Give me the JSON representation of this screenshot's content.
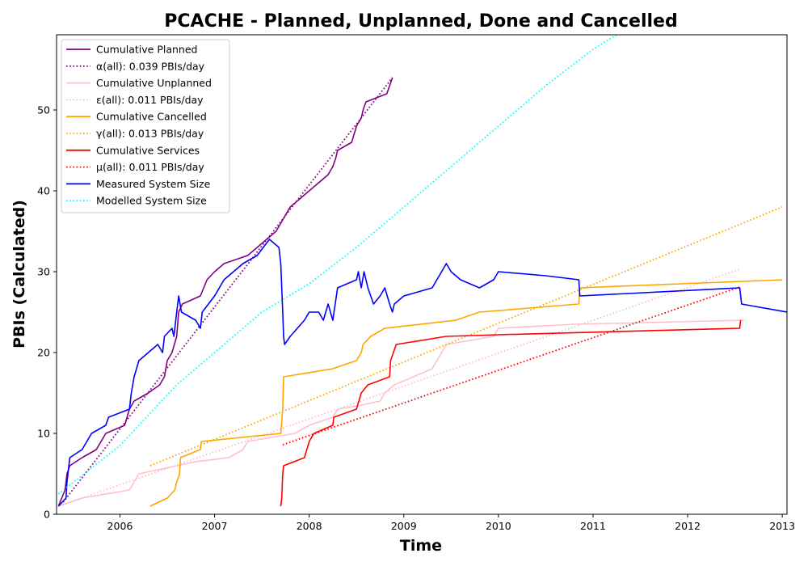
{
  "chart_data": {
    "type": "line",
    "title": "PCACHE - Planned, Unplanned, Done  and Cancelled",
    "xlabel": "Time",
    "ylabel": "PBIs (Calculated)",
    "xlim": [
      2005.33,
      2013.05
    ],
    "ylim": [
      0,
      59.3
    ],
    "x_ticks": [
      {
        "value": 2006,
        "label": "2006"
      },
      {
        "value": 2007,
        "label": "2007"
      },
      {
        "value": 2008,
        "label": "2008"
      },
      {
        "value": 2009,
        "label": "2009"
      },
      {
        "value": 2010,
        "label": "2010"
      },
      {
        "value": 2011,
        "label": "2011"
      },
      {
        "value": 2012,
        "label": "2012"
      },
      {
        "value": 2013,
        "label": "2013"
      }
    ],
    "y_ticks": [
      {
        "value": 0,
        "label": "0"
      },
      {
        "value": 10,
        "label": "10"
      },
      {
        "value": 20,
        "label": "20"
      },
      {
        "value": 30,
        "label": "30"
      },
      {
        "value": 40,
        "label": "40"
      },
      {
        "value": 50,
        "label": "50"
      }
    ],
    "grid": false,
    "legend_position": "top-left",
    "series": [
      {
        "name": "Cumulative Planned",
        "color": "#800080",
        "style": "solid",
        "points": [
          [
            2005.35,
            1
          ],
          [
            2005.42,
            3
          ],
          [
            2005.44,
            5
          ],
          [
            2005.47,
            6
          ],
          [
            2005.6,
            7
          ],
          [
            2005.75,
            8
          ],
          [
            2005.85,
            10
          ],
          [
            2006.05,
            11
          ],
          [
            2006.1,
            13
          ],
          [
            2006.15,
            14
          ],
          [
            2006.3,
            15
          ],
          [
            2006.42,
            16
          ],
          [
            2006.47,
            17
          ],
          [
            2006.5,
            19
          ],
          [
            2006.55,
            20
          ],
          [
            2006.6,
            22
          ],
          [
            2006.62,
            25
          ],
          [
            2006.66,
            26
          ],
          [
            2006.85,
            27
          ],
          [
            2006.92,
            29
          ],
          [
            2007.0,
            30
          ],
          [
            2007.1,
            31
          ],
          [
            2007.35,
            32
          ],
          [
            2007.55,
            34
          ],
          [
            2007.65,
            35
          ],
          [
            2007.7,
            36
          ],
          [
            2007.8,
            38
          ],
          [
            2007.9,
            39
          ],
          [
            2008.0,
            40
          ],
          [
            2008.1,
            41
          ],
          [
            2008.2,
            42
          ],
          [
            2008.25,
            43
          ],
          [
            2008.28,
            44
          ],
          [
            2008.3,
            45
          ],
          [
            2008.45,
            46
          ],
          [
            2008.5,
            48
          ],
          [
            2008.55,
            49
          ],
          [
            2008.57,
            50
          ],
          [
            2008.6,
            51
          ],
          [
            2008.82,
            52
          ],
          [
            2008.85,
            53
          ],
          [
            2008.88,
            54
          ]
        ]
      },
      {
        "name": "α(all): 0.039 PBIs/day",
        "color": "#800080",
        "style": "dotted",
        "points": [
          [
            2005.4,
            1.5
          ],
          [
            2008.88,
            54
          ]
        ]
      },
      {
        "name": "Cumulative Unplanned",
        "color": "#ffc0cb",
        "style": "solid",
        "points": [
          [
            2005.35,
            1
          ],
          [
            2005.6,
            2
          ],
          [
            2006.1,
            3
          ],
          [
            2006.2,
            5
          ],
          [
            2006.4,
            5.5
          ],
          [
            2006.8,
            6.5
          ],
          [
            2007.15,
            7
          ],
          [
            2007.3,
            8
          ],
          [
            2007.35,
            9
          ],
          [
            2007.6,
            9.5
          ],
          [
            2007.85,
            10
          ],
          [
            2008.0,
            11
          ],
          [
            2008.25,
            12
          ],
          [
            2008.3,
            13
          ],
          [
            2008.55,
            13.5
          ],
          [
            2008.75,
            14
          ],
          [
            2008.8,
            15
          ],
          [
            2008.9,
            16
          ],
          [
            2009.1,
            17
          ],
          [
            2009.3,
            18
          ],
          [
            2009.35,
            19
          ],
          [
            2009.45,
            21
          ],
          [
            2009.95,
            22
          ],
          [
            2010.0,
            23
          ],
          [
            2010.8,
            23.5
          ],
          [
            2012.6,
            24
          ]
        ]
      },
      {
        "name": "ε(all): 0.011 PBIs/day",
        "color": "#ffc0cb",
        "style": "dotted",
        "points": [
          [
            2005.35,
            1
          ],
          [
            2012.55,
            30.3
          ]
        ]
      },
      {
        "name": "Cumulative Cancelled",
        "color": "#ffa500",
        "style": "solid",
        "points": [
          [
            2006.32,
            1
          ],
          [
            2006.5,
            2
          ],
          [
            2006.58,
            3
          ],
          [
            2006.6,
            4
          ],
          [
            2006.63,
            5
          ],
          [
            2006.64,
            7
          ],
          [
            2006.85,
            8
          ],
          [
            2006.86,
            9
          ],
          [
            2007.7,
            10
          ],
          [
            2007.72,
            13
          ],
          [
            2007.73,
            17
          ],
          [
            2008.25,
            18
          ],
          [
            2008.5,
            19
          ],
          [
            2008.55,
            20
          ],
          [
            2008.57,
            21
          ],
          [
            2008.65,
            22
          ],
          [
            2008.8,
            23
          ],
          [
            2009.55,
            24
          ],
          [
            2009.8,
            25
          ],
          [
            2010.85,
            26
          ],
          [
            2010.86,
            28
          ],
          [
            2013.0,
            29
          ]
        ]
      },
      {
        "name": "γ(all): 0.013 PBIs/day",
        "color": "#ffa500",
        "style": "dotted",
        "points": [
          [
            2006.32,
            6
          ],
          [
            2013.0,
            38
          ]
        ]
      },
      {
        "name": "Cumulative Services",
        "color": "#ff0000",
        "style": "solid",
        "points": [
          [
            2007.7,
            1
          ],
          [
            2007.71,
            2
          ],
          [
            2007.72,
            5
          ],
          [
            2007.73,
            6
          ],
          [
            2007.95,
            7
          ],
          [
            2008.0,
            9
          ],
          [
            2008.05,
            10
          ],
          [
            2008.25,
            11
          ],
          [
            2008.26,
            12
          ],
          [
            2008.5,
            13
          ],
          [
            2008.55,
            15
          ],
          [
            2008.62,
            16
          ],
          [
            2008.85,
            17
          ],
          [
            2008.86,
            19
          ],
          [
            2008.92,
            21
          ],
          [
            2009.45,
            22
          ],
          [
            2010.0,
            22.2
          ],
          [
            2012.55,
            23
          ],
          [
            2012.56,
            24
          ]
        ]
      },
      {
        "name": "μ(all): 0.011 PBIs/day",
        "color": "#ff0000",
        "style": "dotted",
        "points": [
          [
            2007.72,
            8.6
          ],
          [
            2012.55,
            28.1
          ]
        ]
      },
      {
        "name": "Measured System Size",
        "color": "#0000ff",
        "style": "solid",
        "points": [
          [
            2005.35,
            1
          ],
          [
            2005.43,
            2
          ],
          [
            2005.44,
            4
          ],
          [
            2005.47,
            7
          ],
          [
            2005.6,
            8
          ],
          [
            2005.65,
            9
          ],
          [
            2005.7,
            10
          ],
          [
            2005.85,
            11
          ],
          [
            2005.88,
            12
          ],
          [
            2006.1,
            13
          ],
          [
            2006.12,
            15
          ],
          [
            2006.15,
            17
          ],
          [
            2006.2,
            19
          ],
          [
            2006.3,
            20
          ],
          [
            2006.4,
            21
          ],
          [
            2006.45,
            20
          ],
          [
            2006.47,
            22
          ],
          [
            2006.55,
            23
          ],
          [
            2006.57,
            22
          ],
          [
            2006.6,
            25
          ],
          [
            2006.62,
            27
          ],
          [
            2006.65,
            25
          ],
          [
            2006.8,
            24
          ],
          [
            2006.85,
            23
          ],
          [
            2006.87,
            25
          ],
          [
            2007.0,
            27
          ],
          [
            2007.1,
            29
          ],
          [
            2007.2,
            30
          ],
          [
            2007.3,
            31
          ],
          [
            2007.45,
            32
          ],
          [
            2007.58,
            34
          ],
          [
            2007.68,
            33
          ],
          [
            2007.7,
            31
          ],
          [
            2007.71,
            28
          ],
          [
            2007.72,
            25
          ],
          [
            2007.73,
            22
          ],
          [
            2007.74,
            21
          ],
          [
            2007.8,
            22
          ],
          [
            2007.95,
            24
          ],
          [
            2008.0,
            25
          ],
          [
            2008.1,
            25
          ],
          [
            2008.15,
            24
          ],
          [
            2008.2,
            26
          ],
          [
            2008.25,
            24
          ],
          [
            2008.3,
            28
          ],
          [
            2008.5,
            29
          ],
          [
            2008.52,
            30
          ],
          [
            2008.55,
            28
          ],
          [
            2008.58,
            30
          ],
          [
            2008.62,
            28
          ],
          [
            2008.68,
            26
          ],
          [
            2008.75,
            27
          ],
          [
            2008.8,
            28
          ],
          [
            2008.85,
            26
          ],
          [
            2008.88,
            25
          ],
          [
            2008.9,
            26
          ],
          [
            2009.0,
            27
          ],
          [
            2009.3,
            28
          ],
          [
            2009.35,
            29
          ],
          [
            2009.4,
            30
          ],
          [
            2009.45,
            31
          ],
          [
            2009.5,
            30
          ],
          [
            2009.6,
            29
          ],
          [
            2009.8,
            28
          ],
          [
            2009.95,
            29
          ],
          [
            2010.0,
            30
          ],
          [
            2010.5,
            29.5
          ],
          [
            2010.85,
            29
          ],
          [
            2010.86,
            27
          ],
          [
            2012.55,
            28
          ],
          [
            2012.57,
            26
          ],
          [
            2013.05,
            25
          ]
        ]
      },
      {
        "name": "Modelled System Size",
        "color": "#00ffff",
        "style": "dotted",
        "points": [
          [
            2005.35,
            2.5
          ],
          [
            2006.0,
            8.5
          ],
          [
            2006.6,
            16
          ],
          [
            2007.0,
            20
          ],
          [
            2007.5,
            25
          ],
          [
            2008.0,
            28.5
          ],
          [
            2008.5,
            33
          ],
          [
            2009.0,
            38
          ],
          [
            2009.5,
            43
          ],
          [
            2010.0,
            48
          ],
          [
            2010.5,
            53
          ],
          [
            2011.0,
            57.5
          ],
          [
            2011.25,
            59.3
          ]
        ]
      }
    ]
  }
}
